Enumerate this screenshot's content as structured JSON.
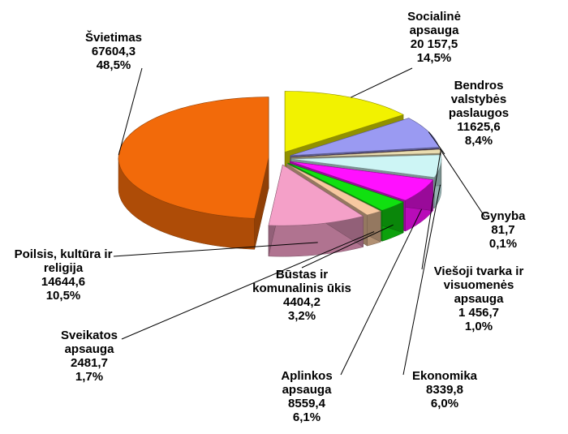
{
  "chart_data": {
    "type": "pie3d",
    "categories": [
      "Socialinė apsauga",
      "Bendros valstybės paslaugos",
      "Gynyba",
      "Viešoji tvarka ir visuomenės apsauga",
      "Ekonomika",
      "Aplinkos apsauga",
      "Būstas ir komunalinis ūkis",
      "Sveikatos apsauga",
      "Poilsis, kultūra ir religija",
      "Švietimas"
    ],
    "values": [
      20157.5,
      11625.6,
      81.7,
      1456.7,
      8339.8,
      8559.4,
      4404.2,
      2481.7,
      14644.6,
      67604.3
    ],
    "value_labels": [
      "20 157,5",
      "11625,6",
      "81,7",
      "1 456,7",
      "8339,8",
      "8559,4",
      "4404,2",
      "2481,7",
      "14644,6",
      "67604,3"
    ],
    "percentages": [
      14.5,
      8.4,
      0.1,
      1.0,
      6.0,
      6.1,
      3.2,
      1.7,
      10.5,
      48.5
    ],
    "percent_labels": [
      "14,5%",
      "8,4%",
      "0,1%",
      "1,0%",
      "6,0%",
      "6,1%",
      "3,2%",
      "1,7%",
      "10,5%",
      "48,5%"
    ],
    "colors": [
      "#f2f200",
      "#9a9af2",
      "#4a1428",
      "#eadcb0",
      "#cdf5f5",
      "#ff10ff",
      "#10e010",
      "#f6c8a0",
      "#f4a0c8",
      "#f26a0a"
    ]
  }
}
